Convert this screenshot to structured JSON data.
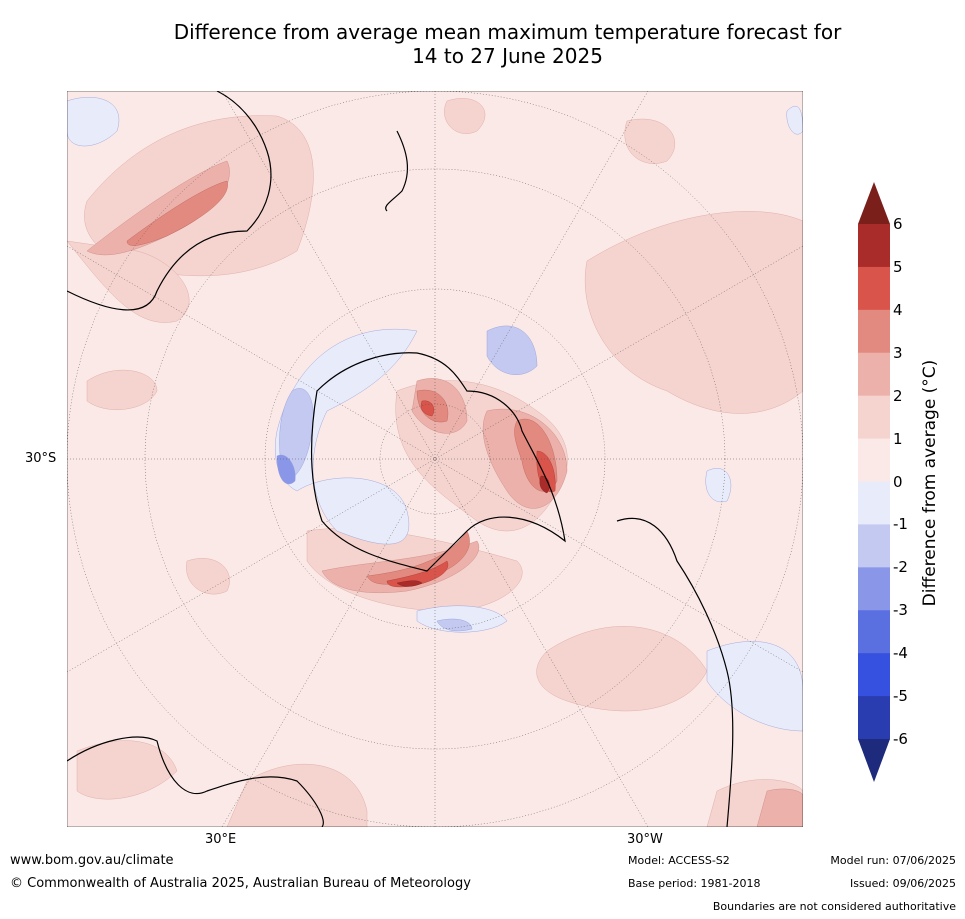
{
  "title": {
    "line1": "Difference from average mean maximum temperature forecast for",
    "line2": "14 to 27 June 2025"
  },
  "map": {
    "latitude_labels": [
      "30°S"
    ],
    "longitude_labels": [
      "30°E",
      "30°W"
    ],
    "colors": {
      "ocean_bg": "#fbe9e7",
      "warm_1_2": "#f5d3cf",
      "warm_2_3": "#ecb1aa",
      "warm_3_4": "#e38a80",
      "warm_4_5": "#d9544a",
      "warm_5_6": "#a92c2b",
      "cool_0_1": "#e8ebfa",
      "cool_1_2": "#c4c9f1",
      "cool_2_3": "#8a97e9",
      "coast": "#000000",
      "grid": "#555555"
    }
  },
  "colorbar": {
    "label": "Difference from average (°C)",
    "ticks": [
      "6",
      "5",
      "4",
      "3",
      "2",
      "1",
      "0",
      "-1",
      "-2",
      "-3",
      "-4",
      "-5",
      "-6"
    ],
    "top_color": "#7a1f1a",
    "bottom_color": "#1e2a7c",
    "band_colors": [
      "#a92c2b",
      "#d9544a",
      "#e38a80",
      "#ecb1aa",
      "#f5d3cf",
      "#fbe9e7",
      "#e8ebfa",
      "#c4c9f1",
      "#8a97e9",
      "#5a6fe0",
      "#3651e0",
      "#2a3db0"
    ]
  },
  "footer": {
    "url": "www.bom.gov.au/climate",
    "copyright": "© Commonwealth of Australia 2025, Australian Bureau of Meteorology",
    "model": "Model: ACCESS-S2",
    "base_period": "Base period: 1981-2018",
    "model_run": "Model run: 07/06/2025",
    "issued": "Issued: 09/06/2025",
    "disclaimer": "Boundaries are not considered authoritative"
  }
}
